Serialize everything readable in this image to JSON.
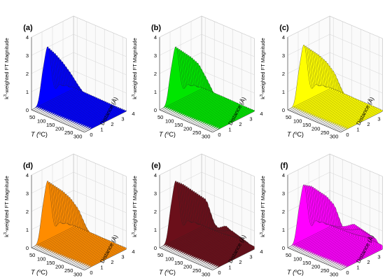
{
  "panel_labels": [
    "(a)",
    "(b)",
    "(c)",
    "(d)",
    "(e)",
    "(f)"
  ],
  "colors": [
    "#0000ff",
    "#00e600",
    "#ffff00",
    "#ff8c00",
    "#6b0f1a",
    "#ff00ff"
  ],
  "zlabel_sup": "3",
  "zlabel_pre": "k",
  "zlabel_post": "-weighted FT Magnitude",
  "xlabel_pre": "T (",
  "xlabel_sup": "o",
  "xlabel_post": "C)",
  "ylabel": "Distance (Å)",
  "chart_data": [
    {
      "type": "area",
      "panel": "(a)",
      "temps": [
        50,
        100,
        150,
        200,
        250,
        300
      ],
      "peak_main": [
        3.0,
        2.8,
        2.5,
        2.1,
        1.6,
        1.2,
        0.9,
        0.7
      ],
      "peak_second": [
        0.6,
        0.55,
        0.5,
        0.45,
        0.4,
        0.35,
        0.3,
        0.3
      ],
      "x_ticks": [
        50,
        100,
        150,
        200,
        250,
        300
      ],
      "y_ticks": [
        0,
        1,
        2,
        3,
        4
      ],
      "z_ticks": [
        0,
        1,
        2,
        3,
        4
      ],
      "zlim": [
        0,
        4
      ]
    },
    {
      "type": "area",
      "panel": "(b)",
      "temps": [
        50,
        100,
        150,
        200,
        250,
        300
      ],
      "peak_main": [
        3.0,
        2.9,
        2.8,
        2.6,
        2.0,
        1.3,
        1.0,
        0.8
      ],
      "peak_second": [
        0.6,
        0.6,
        0.55,
        0.55,
        0.5,
        0.45,
        0.4,
        0.4
      ],
      "x_ticks": [
        50,
        100,
        150,
        200,
        250,
        300
      ],
      "y_ticks": [
        0,
        1,
        2,
        3,
        4
      ],
      "z_ticks": [
        0,
        1,
        2,
        3,
        4
      ],
      "zlim": [
        0,
        4
      ]
    },
    {
      "type": "area",
      "panel": "(c)",
      "temps": [
        50,
        100,
        150,
        200,
        250,
        300
      ],
      "peak_main": [
        3.1,
        3.0,
        2.9,
        2.7,
        2.3,
        1.5,
        1.0,
        0.9
      ],
      "peak_second": [
        0.6,
        0.6,
        0.6,
        0.55,
        0.5,
        0.5,
        0.5,
        0.45
      ],
      "x_ticks": [
        50,
        100,
        150,
        200,
        250,
        300
      ],
      "y_ticks": [
        0,
        1,
        2,
        3,
        4
      ],
      "z_ticks": [
        0,
        1,
        2,
        3,
        4
      ],
      "zlim": [
        0,
        4
      ]
    },
    {
      "type": "area",
      "panel": "(d)",
      "temps": [
        50,
        100,
        150,
        200,
        250,
        300
      ],
      "peak_main": [
        3.2,
        3.1,
        3.0,
        2.8,
        2.4,
        1.6,
        1.1,
        0.9
      ],
      "peak_second": [
        0.6,
        0.6,
        0.6,
        0.6,
        0.55,
        0.55,
        0.5,
        0.5
      ],
      "x_ticks": [
        50,
        100,
        150,
        200,
        250,
        300
      ],
      "y_ticks": [
        0,
        1,
        2,
        3,
        4
      ],
      "z_ticks": [
        0,
        1,
        2,
        3,
        4
      ],
      "zlim": [
        0,
        4
      ]
    },
    {
      "type": "area",
      "panel": "(e)",
      "temps": [
        50,
        100,
        150,
        200,
        250,
        300
      ],
      "peak_main": [
        3.2,
        3.2,
        3.1,
        3.0,
        2.9,
        1.8,
        1.5,
        1.3
      ],
      "peak_second": [
        0.7,
        0.7,
        0.7,
        0.8,
        1.0,
        1.3,
        1.1,
        0.9
      ],
      "x_ticks": [
        50,
        100,
        150,
        200,
        250,
        300
      ],
      "y_ticks": [
        0,
        1,
        2,
        3,
        4
      ],
      "z_ticks": [
        0,
        1,
        2,
        3,
        4
      ],
      "zlim": [
        0,
        4
      ]
    },
    {
      "type": "area",
      "panel": "(f)",
      "temps": [
        50,
        100,
        150,
        200,
        250,
        300
      ],
      "peak_main": [
        3.0,
        3.1,
        3.0,
        2.9,
        2.6,
        1.6,
        1.2,
        1.0
      ],
      "peak_second": [
        0.7,
        0.7,
        0.8,
        0.9,
        1.1,
        1.4,
        1.3,
        1.2
      ],
      "x_ticks": [
        50,
        100,
        150,
        200,
        250,
        300
      ],
      "y_ticks": [
        0,
        1,
        2,
        3,
        4
      ],
      "z_ticks": [
        0,
        1,
        2,
        3,
        4
      ],
      "zlim": [
        0,
        4
      ]
    }
  ]
}
